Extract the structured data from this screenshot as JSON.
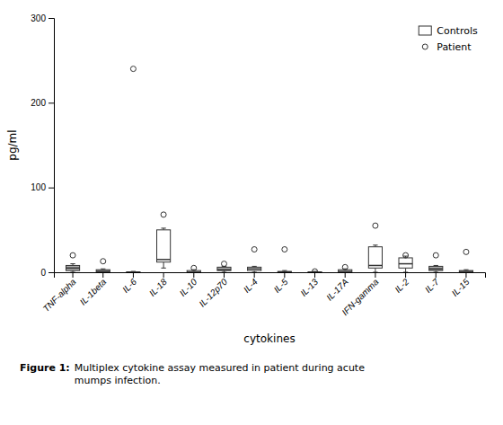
{
  "chart_data": {
    "type": "box",
    "categories": [
      "TNF-alpha",
      "IL-1beta",
      "IL-6",
      "IL-18",
      "IL-10",
      "IL-12p70",
      "IL-4",
      "IL-5",
      "IL-13",
      "IL-17A",
      "IFN-gamma",
      "IL-2",
      "IL-7",
      "IL-15"
    ],
    "series": [
      {
        "name": "Controls",
        "type": "box",
        "color": "#333333",
        "colors": [
          "#aaaaaa",
          "#aaaaaa",
          "#ffffff",
          "#ffffff",
          "#ffffff",
          "#aaaaaa",
          "#ffffff",
          "#ffffff",
          "#ffffff",
          "#ffffff",
          "#ffffff",
          "#ffffff",
          "#aaaaaa",
          "#ffffff"
        ],
        "values": [
          {
            "q1": 2,
            "median": 5,
            "q3": 8,
            "whisker_low": 0,
            "whisker_high": 10
          },
          {
            "q1": 0,
            "median": 1,
            "q3": 3,
            "whisker_low": 0,
            "whisker_high": 4
          },
          {
            "q1": 0,
            "median": 0,
            "q3": 0.5,
            "whisker_low": 0,
            "whisker_high": 1
          },
          {
            "q1": 12,
            "median": 15,
            "q3": 50,
            "whisker_low": 5,
            "whisker_high": 52
          },
          {
            "q1": 0,
            "median": 0,
            "q3": 2,
            "whisker_low": 0,
            "whisker_high": 3
          },
          {
            "q1": 2,
            "median": 3,
            "q3": 6,
            "whisker_low": 0,
            "whisker_high": 7
          },
          {
            "q1": 2,
            "median": 4,
            "q3": 6,
            "whisker_low": 0,
            "whisker_high": 7
          },
          {
            "q1": 0,
            "median": 0,
            "q3": 1,
            "whisker_low": 0,
            "whisker_high": 2
          },
          {
            "q1": 0,
            "median": 0,
            "q3": 0.5,
            "whisker_low": 0,
            "whisker_high": 1
          },
          {
            "q1": 0,
            "median": 1,
            "q3": 3,
            "whisker_low": 0,
            "whisker_high": 4
          },
          {
            "q1": 5,
            "median": 8,
            "q3": 30,
            "whisker_low": 0,
            "whisker_high": 32
          },
          {
            "q1": 5,
            "median": 10,
            "q3": 17,
            "whisker_low": 0,
            "whisker_high": 19
          },
          {
            "q1": 2,
            "median": 4,
            "q3": 7,
            "whisker_low": 0,
            "whisker_high": 8
          },
          {
            "q1": 0,
            "median": 1,
            "q3": 2,
            "whisker_low": 0,
            "whisker_high": 3
          }
        ]
      },
      {
        "name": "Patient",
        "type": "scatter",
        "marker": "circle",
        "color": "#333333",
        "values": [
          20,
          13,
          240,
          68,
          5,
          10,
          27,
          27,
          1,
          6,
          55,
          20,
          20,
          24
        ]
      }
    ],
    "xlabel": "cytokines",
    "ylabel": "pg/ml",
    "ylim": [
      0,
      300
    ],
    "yticks": [
      0,
      100,
      200,
      300
    ],
    "legend": "upper right",
    "annotations": [
      "Figure 1:",
      "Multiplex cytokine assay measured in patient during acute\nmumps infection."
    ]
  }
}
